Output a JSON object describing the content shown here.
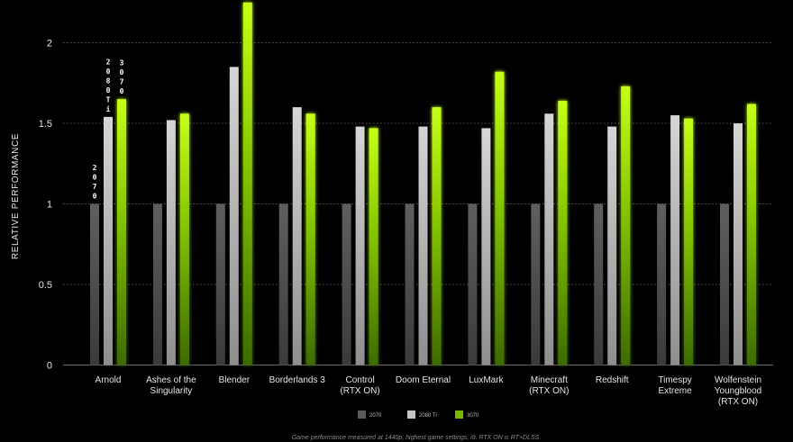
{
  "chart_data": {
    "type": "bar",
    "title": "",
    "xlabel": "",
    "ylabel": "RELATIVE PERFORMANCE",
    "ylim": [
      0,
      2.2
    ],
    "yticks": [
      0,
      0.5,
      1,
      1.5,
      2
    ],
    "ytick_labels": [
      "0",
      "0.5",
      "1",
      "1.5",
      "2"
    ],
    "grid": "horizontal dotted",
    "legend_position": "bottom-center",
    "categories": [
      [
        "Arnold"
      ],
      [
        "Ashes of the",
        "Singularity"
      ],
      [
        "Blender"
      ],
      [
        "Borderlands 3"
      ],
      [
        "Control",
        "(RTX ON)"
      ],
      [
        "Doom Eternal"
      ],
      [
        "LuxMark"
      ],
      [
        "Minecraft",
        "(RTX ON)"
      ],
      [
        "Redshift"
      ],
      [
        "Timespy",
        "Extreme"
      ],
      [
        "Wolfenstein",
        "Youngblood",
        "(RTX ON)"
      ]
    ],
    "series": [
      {
        "name": "2070",
        "color": "#5a5a5a",
        "values": [
          1,
          1,
          1,
          1,
          1,
          1,
          1,
          1,
          1,
          1,
          1
        ]
      },
      {
        "name": "2080 Ti",
        "color": "#c4c4c4",
        "values": [
          1.54,
          1.52,
          1.85,
          1.6,
          1.48,
          1.48,
          1.47,
          1.56,
          1.48,
          1.55,
          1.5
        ]
      },
      {
        "name": "3070",
        "color": "#76b900",
        "values": [
          1.65,
          1.56,
          2.25,
          1.56,
          1.47,
          1.6,
          1.82,
          1.64,
          1.73,
          1.53,
          1.62
        ]
      }
    ],
    "bar_annotations": [
      {
        "category_index": 0,
        "series_index": 0,
        "text": [
          "2",
          "0",
          "7",
          "0"
        ]
      },
      {
        "category_index": 0,
        "series_index": 1,
        "text": [
          "2",
          "0",
          "8",
          "0",
          "T",
          "i"
        ]
      },
      {
        "category_index": 0,
        "series_index": 2,
        "text": [
          "3",
          "0",
          "7",
          "0"
        ]
      }
    ],
    "footnote": "Game performance measured at 1440p, highest game settings, i9. RTX ON is RT+DLSS."
  }
}
